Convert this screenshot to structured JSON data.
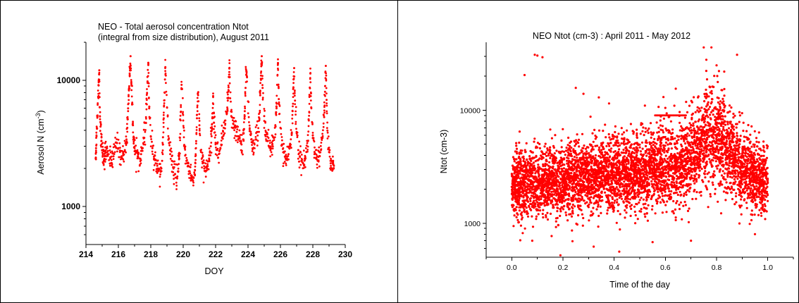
{
  "colors": {
    "points": "#ff0000",
    "axis": "#000000",
    "background": "#ffffff"
  },
  "chart_data": [
    {
      "type": "scatter",
      "title_line1": "NEO - Total aerosol concentration Ntot",
      "title_line2": "(integral from size distribution), August 2011",
      "xlabel": "DOY",
      "ylabel_main": "Aerosol N (cm",
      "ylabel_sup": "-3",
      "ylabel_close": ")",
      "xlim": [
        214,
        230
      ],
      "ylim": [
        500,
        20000
      ],
      "y_scale": "log",
      "xticks": [
        214,
        216,
        218,
        220,
        222,
        224,
        226,
        228,
        230
      ],
      "xtick_labels": [
        "214",
        "216",
        "218",
        "220",
        "222",
        "224",
        "226",
        "228",
        "230"
      ],
      "yticks": [
        1000,
        10000
      ],
      "ytick_labels": [
        "1000",
        "10000"
      ],
      "grid": false,
      "legend": "none",
      "series": [
        {
          "color": "#ff0000",
          "x": [
            214.6,
            214.62,
            214.65,
            214.7,
            214.75,
            214.78,
            214.82,
            214.85,
            214.9,
            214.95,
            215.0,
            215.05,
            215.1,
            215.15,
            215.2,
            215.3,
            215.4,
            215.5,
            215.6,
            215.7,
            215.8,
            215.9,
            216.0,
            216.1,
            216.2,
            216.3,
            216.4,
            216.5,
            216.55,
            216.6,
            216.65,
            216.7,
            216.75,
            216.8,
            216.85,
            216.9,
            216.95,
            217.0,
            217.1,
            217.2,
            217.3,
            217.4,
            217.5,
            217.6,
            217.7,
            217.75,
            217.8,
            217.85,
            217.9,
            218.0,
            218.1,
            218.2,
            218.3,
            218.4,
            218.5,
            218.6,
            218.7,
            218.75,
            218.8,
            218.85,
            218.9,
            219.0,
            219.1,
            219.2,
            219.3,
            219.4,
            219.5,
            219.6,
            219.7,
            219.75,
            219.8,
            219.85,
            219.9,
            220.0,
            220.1,
            220.2,
            220.3,
            220.4,
            220.5,
            220.6,
            220.7,
            220.75,
            220.8,
            220.85,
            220.9,
            221.0,
            221.1,
            221.2,
            221.3,
            221.4,
            221.5,
            221.6,
            221.7,
            221.75,
            221.8,
            221.85,
            221.9,
            222.0,
            222.1,
            222.2,
            222.3,
            222.4,
            222.5,
            222.6,
            222.7,
            222.75,
            222.8,
            222.85,
            222.9,
            223.0,
            223.1,
            223.2,
            223.3,
            223.4,
            223.5,
            223.6,
            223.7,
            223.75,
            223.8,
            223.85,
            223.9,
            224.0,
            224.1,
            224.2,
            224.3,
            224.4,
            224.5,
            224.6,
            224.7,
            224.75,
            224.8,
            224.85,
            224.9,
            225.0,
            225.1,
            225.2,
            225.3,
            225.4,
            225.5,
            225.6,
            225.7,
            225.75,
            225.8,
            225.85,
            225.9,
            226.0,
            226.1,
            226.2,
            226.3,
            226.4,
            226.5,
            226.6,
            226.7,
            226.75,
            226.8,
            226.85,
            226.9,
            227.0,
            227.1,
            227.2,
            227.3,
            227.4,
            227.5,
            227.6,
            227.7,
            227.75,
            227.8,
            227.85,
            227.9,
            228.0,
            228.1,
            228.2,
            228.3,
            228.4,
            228.5,
            228.6,
            228.7,
            228.75,
            228.8,
            228.85,
            228.9,
            229.0,
            229.1,
            229.2,
            229.25,
            229.3
          ],
          "y": [
            2400,
            2900,
            3600,
            5200,
            7400,
            9100,
            12000,
            6100,
            4300,
            3300,
            2800,
            2600,
            2300,
            2500,
            2700,
            2900,
            2600,
            2400,
            2200,
            2500,
            3000,
            3200,
            2900,
            2700,
            2500,
            2600,
            2800,
            3400,
            4200,
            6000,
            8300,
            11000,
            15500,
            9500,
            6500,
            4400,
            3500,
            2900,
            2700,
            2500,
            2400,
            2600,
            2900,
            3500,
            4600,
            7000,
            9800,
            13200,
            6000,
            3600,
            2900,
            2400,
            2200,
            2100,
            2000,
            1900,
            2300,
            3100,
            5000,
            8000,
            12700,
            6100,
            3400,
            2600,
            2300,
            2000,
            1800,
            1700,
            1900,
            2400,
            3500,
            5600,
            9200,
            4800,
            2900,
            2300,
            2100,
            1900,
            1700,
            1600,
            1800,
            2200,
            3300,
            5000,
            7800,
            4400,
            2700,
            2200,
            2000,
            1900,
            2100,
            2400,
            3000,
            3600,
            5000,
            7500,
            4600,
            3200,
            2800,
            2600,
            2900,
            3500,
            4200,
            4800,
            5500,
            6900,
            8800,
            12400,
            7200,
            5100,
            4500,
            4200,
            3900,
            3600,
            3300,
            3100,
            3400,
            4100,
            5700,
            8700,
            11800,
            6800,
            4100,
            3400,
            3200,
            3100,
            3400,
            3900,
            5000,
            7600,
            10900,
            15500,
            8700,
            5200,
            3900,
            3300,
            3000,
            2900,
            3100,
            3500,
            4300,
            6200,
            9200,
            13700,
            7100,
            4200,
            3100,
            2700,
            2500,
            2400,
            2600,
            3000,
            3800,
            5700,
            8800,
            12500,
            6900,
            3900,
            2800,
            2500,
            2300,
            2200,
            2400,
            2700,
            3300,
            4800,
            7500,
            11300,
            6100,
            3500,
            2600,
            2400,
            2300,
            2500,
            2800,
            3500,
            5100,
            8100,
            13000,
            7000,
            4000,
            2700,
            2200,
            2000,
            2300,
            2100
          ]
        }
      ]
    },
    {
      "type": "scatter",
      "title": "NEO Ntot (cm-3) : April 2011 - May 2012",
      "xlabel": "Time of the day",
      "ylabel": "Ntot (cm-3)",
      "xlim": [
        -0.1,
        1.1
      ],
      "ylim": [
        500,
        40000
      ],
      "y_scale": "log",
      "xticks": [
        0.0,
        0.2,
        0.4,
        0.6,
        0.8,
        1.0
      ],
      "xtick_labels": [
        "0.0",
        "0.2",
        "0.4",
        "0.6",
        "0.8",
        "1.0"
      ],
      "yticks": [
        1000,
        10000
      ],
      "ytick_labels": [
        "1000",
        "10000"
      ],
      "grid": false,
      "legend": "none",
      "series": [
        {
          "color": "#ff0000",
          "x": [
            0.0,
            0.02,
            0.04,
            0.06,
            0.08,
            0.1,
            0.12,
            0.14,
            0.16,
            0.18,
            0.2,
            0.22,
            0.24,
            0.26,
            0.28,
            0.3,
            0.32,
            0.34,
            0.36,
            0.38,
            0.4,
            0.42,
            0.44,
            0.46,
            0.48,
            0.5,
            0.52,
            0.54,
            0.56,
            0.58,
            0.6,
            0.62,
            0.64,
            0.66,
            0.68,
            0.7,
            0.72,
            0.74,
            0.76,
            0.78,
            0.8,
            0.82,
            0.84,
            0.86,
            0.88,
            0.9,
            0.92,
            0.94,
            0.96,
            0.98,
            1.0
          ],
          "y": [
            2100,
            2150,
            2200,
            2250,
            2250,
            2300,
            2300,
            2350,
            2400,
            2400,
            2450,
            2450,
            2450,
            2500,
            2500,
            2500,
            2550,
            2550,
            2600,
            2600,
            2600,
            2650,
            2700,
            2700,
            2750,
            2800,
            2850,
            2900,
            2950,
            3000,
            3050,
            3100,
            3200,
            3300,
            3500,
            3800,
            4200,
            4800,
            5500,
            6000,
            5800,
            5200,
            4600,
            4000,
            3500,
            3100,
            2800,
            2600,
            2450,
            2350,
            2300
          ],
          "spread_low": [
            1000,
            1000,
            950,
            950,
            950,
            950,
            950,
            1000,
            1000,
            1000,
            1000,
            1000,
            1000,
            1000,
            1050,
            1050,
            1050,
            1050,
            1100,
            1100,
            1100,
            1100,
            1100,
            1150,
            1150,
            1150,
            1200,
            1200,
            1200,
            1250,
            1250,
            1300,
            1300,
            1350,
            1400,
            1500,
            1600,
            1700,
            1800,
            1800,
            1750,
            1650,
            1550,
            1450,
            1350,
            1250,
            1200,
            1150,
            1100,
            1050,
            1050
          ],
          "spread_high": [
            5000,
            5200,
            5300,
            5400,
            5400,
            5500,
            5600,
            5700,
            5900,
            6000,
            6000,
            6000,
            6100,
            6100,
            6200,
            6200,
            6300,
            6300,
            6400,
            6500,
            6600,
            6700,
            6800,
            6900,
            7000,
            7200,
            7400,
            7600,
            7800,
            8000,
            8200,
            8400,
            8700,
            9100,
            9800,
            11000,
            13000,
            16000,
            20000,
            22000,
            20000,
            17000,
            14000,
            11500,
            9500,
            8200,
            7200,
            6500,
            6000,
            5600,
            5300
          ]
        }
      ],
      "annotation_band": {
        "x_start": 0.56,
        "x_end": 0.68,
        "y": 9000
      },
      "outliers": {
        "x": [
          0.05,
          0.09,
          0.1,
          0.12,
          0.25,
          0.28,
          0.34,
          0.38,
          0.52,
          0.6,
          0.75,
          0.76,
          0.78,
          0.8,
          0.83,
          0.88,
          0.08,
          0.19,
          0.32,
          0.42,
          0.55,
          0.7,
          0.95
        ],
        "y": [
          20500,
          31000,
          30500,
          29500,
          15800,
          14000,
          13000,
          11500,
          11000,
          10500,
          36000,
          28000,
          36000,
          25000,
          22000,
          31000,
          700,
          520,
          620,
          560,
          680,
          700,
          800
        ]
      }
    }
  ]
}
